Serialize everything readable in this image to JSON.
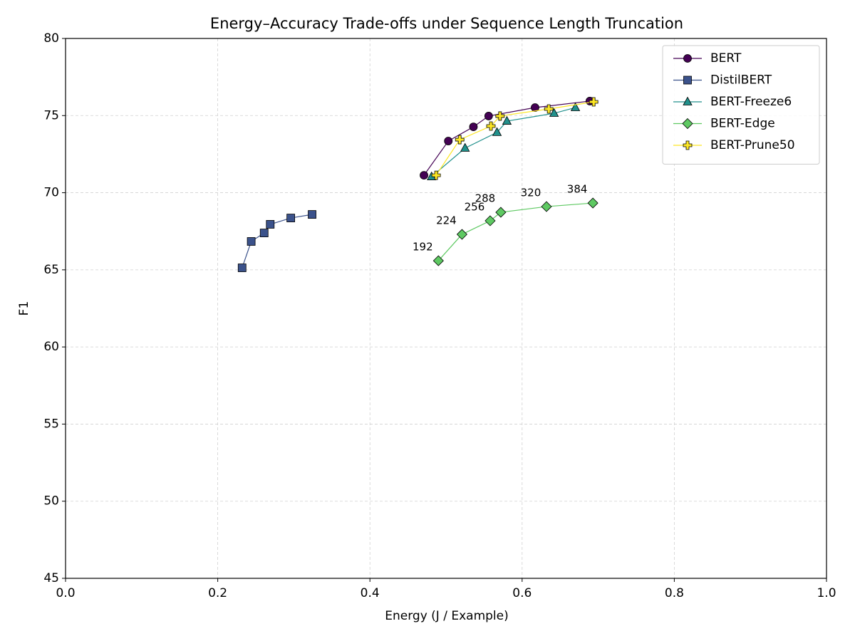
{
  "chart_data": {
    "type": "line",
    "title": "Energy–Accuracy Trade-offs under Sequence Length Truncation",
    "x_label": "Energy (J / Example)",
    "y_label": "F1",
    "xlim": [
      0,
      1
    ],
    "ylim": [
      45,
      80
    ],
    "xticks": [
      {
        "value": 0,
        "label": "0.0"
      },
      {
        "value": 0.2,
        "label": "0.2"
      },
      {
        "value": 0.4,
        "label": "0.4"
      },
      {
        "value": 0.6,
        "label": "0.6"
      },
      {
        "value": 0.8,
        "label": "0.8"
      },
      {
        "value": 1,
        "label": "1.0"
      }
    ],
    "yticks": [
      45,
      50,
      55,
      60,
      65,
      70,
      75,
      80
    ],
    "grid": true,
    "legend": "upper right",
    "series": [
      {
        "name": "BERT",
        "color": "#440154",
        "marker": "circle",
        "x": [
          0.471,
          0.503,
          0.536,
          0.556,
          0.617,
          0.689
        ],
        "values": [
          71.13,
          73.35,
          74.27,
          74.97,
          75.52,
          75.94
        ]
      },
      {
        "name": "DistilBERT",
        "color": "#3b528b",
        "marker": "square",
        "x": [
          0.232,
          0.244,
          0.261,
          0.269,
          0.296,
          0.324
        ],
        "values": [
          65.13,
          66.84,
          67.39,
          67.95,
          68.36,
          68.59
        ]
      },
      {
        "name": "BERT-Freeze6",
        "color": "#21918c",
        "marker": "triangle",
        "x": [
          0.481,
          0.525,
          0.567,
          0.58,
          0.642,
          0.67
        ],
        "values": [
          71.04,
          72.89,
          73.91,
          74.64,
          75.15,
          75.52
        ]
      },
      {
        "name": "BERT-Edge",
        "color": "#5ec962",
        "marker": "diamond",
        "x": [
          0.49,
          0.521,
          0.558,
          0.572,
          0.632,
          0.693
        ],
        "values": [
          65.59,
          67.3,
          68.18,
          68.73,
          69.1,
          69.33
        ],
        "point_labels": [
          "192",
          "224",
          "256",
          "288",
          "320",
          "384"
        ]
      },
      {
        "name": "BERT-Prune50",
        "color": "#fde725",
        "marker": "plus",
        "x": [
          0.487,
          0.518,
          0.559,
          0.571,
          0.635,
          0.694
        ],
        "values": [
          71.13,
          73.44,
          74.32,
          74.97,
          75.43,
          75.89
        ]
      }
    ]
  }
}
